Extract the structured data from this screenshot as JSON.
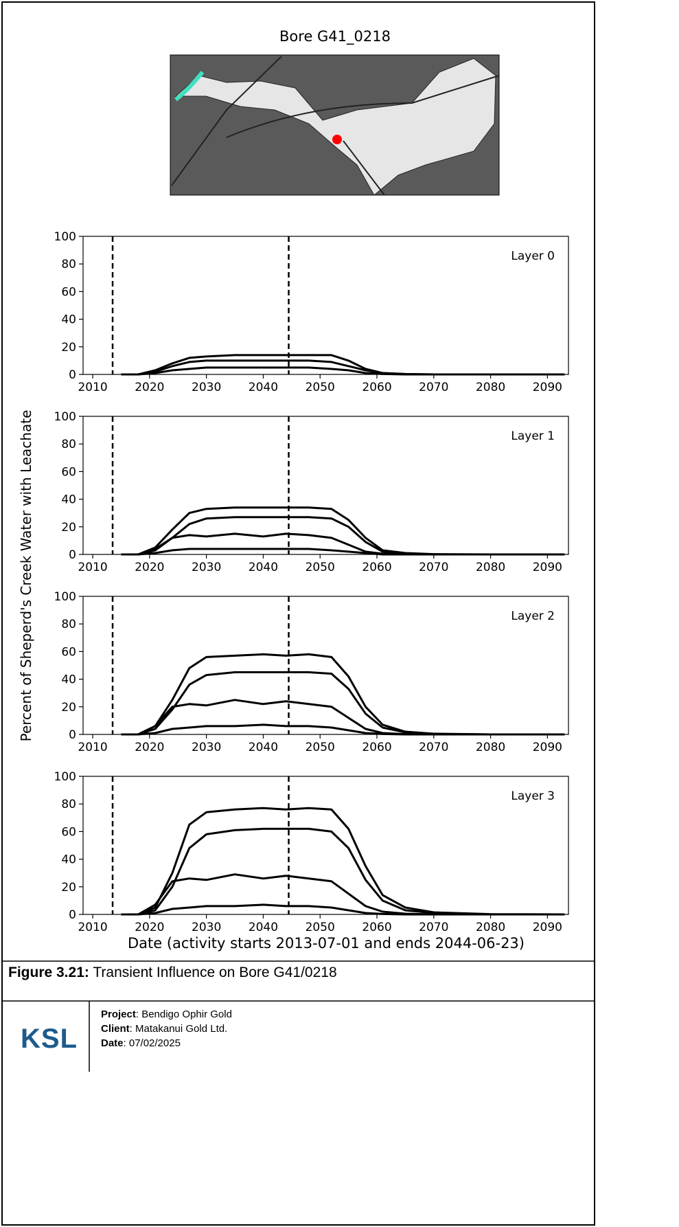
{
  "figure": {
    "title": "Bore G41_0218",
    "ylabel": "Percent of Sheperd's Creek Water with Leachate",
    "xlabel": "Date (activity starts 2013-07-01 and ends 2044-06-23)"
  },
  "chart_data": [
    {
      "type": "line",
      "annotation": "Layer 0",
      "xlim": [
        2008.3,
        2093.7
      ],
      "ylim": [
        0,
        100
      ],
      "xticks": [
        2010,
        2020,
        2030,
        2040,
        2050,
        2060,
        2070,
        2080,
        2090
      ],
      "yticks": [
        0,
        20,
        40,
        60,
        80,
        100
      ],
      "vlines": [
        2013.5,
        2044.48
      ],
      "x": [
        2015,
        2018,
        2021,
        2024,
        2027,
        2030,
        2035,
        2040,
        2044,
        2048,
        2052,
        2055,
        2058,
        2061,
        2065,
        2070,
        2080,
        2093
      ],
      "series": [
        {
          "color": "#000000",
          "values": [
            0,
            0,
            3,
            8,
            12,
            13,
            14,
            14,
            14,
            14,
            14,
            10,
            4,
            1,
            0.3,
            0,
            0,
            0
          ]
        },
        {
          "color": "#000000",
          "values": [
            0,
            0,
            2,
            6,
            9,
            10,
            10,
            10,
            10,
            10,
            9,
            6,
            3,
            1,
            0.2,
            0,
            0,
            0
          ]
        },
        {
          "color": "#000000",
          "values": [
            0,
            0,
            1,
            3,
            4,
            5,
            5,
            5,
            5,
            5,
            4,
            3,
            1,
            0.3,
            0,
            0,
            0,
            0
          ]
        }
      ]
    },
    {
      "type": "line",
      "annotation": "Layer 1",
      "xlim": [
        2008.3,
        2093.7
      ],
      "ylim": [
        0,
        100
      ],
      "xticks": [
        2010,
        2020,
        2030,
        2040,
        2050,
        2060,
        2070,
        2080,
        2090
      ],
      "yticks": [
        0,
        20,
        40,
        60,
        80,
        100
      ],
      "vlines": [
        2013.5,
        2044.48
      ],
      "x": [
        2015,
        2018,
        2021,
        2024,
        2027,
        2030,
        2035,
        2040,
        2044,
        2048,
        2052,
        2055,
        2058,
        2061,
        2065,
        2070,
        2080,
        2093
      ],
      "series": [
        {
          "color": "#000000",
          "values": [
            0,
            0,
            5,
            18,
            30,
            33,
            34,
            34,
            34,
            34,
            33,
            25,
            12,
            3,
            1,
            0.2,
            0,
            0
          ]
        },
        {
          "color": "#000000",
          "values": [
            0,
            0,
            3,
            12,
            22,
            26,
            27,
            27,
            27,
            27,
            26,
            20,
            9,
            2,
            0.5,
            0,
            0,
            0
          ]
        },
        {
          "color": "#000000",
          "values": [
            0,
            0,
            4,
            12,
            14,
            13,
            15,
            13,
            15,
            14,
            12,
            7,
            2,
            0.5,
            0,
            0,
            0,
            0
          ]
        },
        {
          "color": "#000000",
          "values": [
            0,
            0,
            1,
            3,
            4,
            4,
            4,
            4,
            4,
            4,
            3,
            2,
            1,
            0,
            0,
            0,
            0,
            0
          ]
        }
      ]
    },
    {
      "type": "line",
      "annotation": "Layer 2",
      "xlim": [
        2008.3,
        2093.7
      ],
      "ylim": [
        0,
        100
      ],
      "xticks": [
        2010,
        2020,
        2030,
        2040,
        2050,
        2060,
        2070,
        2080,
        2090
      ],
      "yticks": [
        0,
        20,
        40,
        60,
        80,
        100
      ],
      "vlines": [
        2013.5,
        2044.48
      ],
      "x": [
        2015,
        2018,
        2021,
        2024,
        2027,
        2030,
        2035,
        2040,
        2044,
        2048,
        2052,
        2055,
        2058,
        2061,
        2065,
        2070,
        2080,
        2093
      ],
      "series": [
        {
          "color": "#000000",
          "values": [
            0,
            0,
            6,
            25,
            48,
            56,
            57,
            58,
            57,
            58,
            56,
            42,
            20,
            7,
            2,
            0.5,
            0,
            0
          ]
        },
        {
          "color": "#000000",
          "values": [
            0,
            0,
            4,
            18,
            36,
            43,
            45,
            45,
            45,
            45,
            44,
            33,
            15,
            5,
            1.5,
            0.3,
            0,
            0
          ]
        },
        {
          "color": "#000000",
          "values": [
            0,
            0,
            6,
            20,
            22,
            21,
            25,
            22,
            24,
            22,
            20,
            12,
            4,
            1,
            0.2,
            0,
            0,
            0
          ]
        },
        {
          "color": "#000000",
          "values": [
            0,
            0,
            1,
            4,
            5,
            6,
            6,
            7,
            6,
            6,
            5,
            3,
            1,
            0.3,
            0,
            0,
            0,
            0
          ]
        }
      ]
    },
    {
      "type": "line",
      "annotation": "Layer 3",
      "xlim": [
        2008.3,
        2093.7
      ],
      "ylim": [
        0,
        100
      ],
      "xticks": [
        2010,
        2020,
        2030,
        2040,
        2050,
        2060,
        2070,
        2080,
        2090
      ],
      "yticks": [
        0,
        20,
        40,
        60,
        80,
        100
      ],
      "vlines": [
        2013.5,
        2044.48
      ],
      "x": [
        2015,
        2018,
        2021,
        2024,
        2027,
        2030,
        2035,
        2040,
        2044,
        2048,
        2052,
        2055,
        2058,
        2061,
        2065,
        2070,
        2080,
        2093
      ],
      "series": [
        {
          "color": "#000000",
          "values": [
            0,
            0,
            5,
            30,
            65,
            74,
            76,
            77,
            76,
            77,
            76,
            62,
            35,
            14,
            5,
            1.5,
            0.2,
            0
          ]
        },
        {
          "color": "#000000",
          "values": [
            0,
            0,
            3,
            20,
            48,
            58,
            61,
            62,
            62,
            62,
            60,
            48,
            25,
            10,
            3,
            1,
            0,
            0
          ]
        },
        {
          "color": "#000000",
          "values": [
            0,
            0,
            7,
            24,
            26,
            25,
            29,
            26,
            28,
            26,
            24,
            15,
            6,
            2,
            0.5,
            0,
            0,
            0
          ]
        },
        {
          "color": "#000000",
          "values": [
            0,
            0,
            1,
            4,
            5,
            6,
            6,
            7,
            6,
            6,
            5,
            3,
            1,
            0.3,
            0,
            0,
            0,
            0
          ]
        }
      ]
    }
  ],
  "caption": {
    "label": "Figure 3.21:",
    "text": "Transient Influence on Bore G41/0218"
  },
  "footer": {
    "logo": "KSL",
    "project_label": "Project",
    "project": ": Bendigo Ophir Gold",
    "client_label": "Client",
    "client": ": Matakanui Gold Ltd.",
    "date_label": "Date",
    "date": ": 07/02/2025"
  }
}
